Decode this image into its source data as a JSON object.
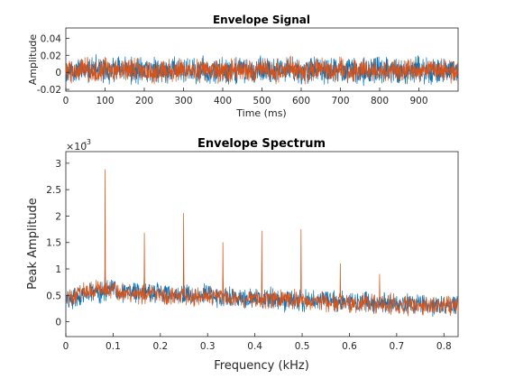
{
  "chart_data": [
    {
      "type": "line",
      "title": "Envelope Signal",
      "xlabel": "Time (ms)",
      "ylabel": "Amplitude",
      "xlim": [
        0,
        1000
      ],
      "ylim": [
        -0.022,
        0.052
      ],
      "xticks": [
        0,
        100,
        200,
        300,
        400,
        500,
        600,
        700,
        800,
        900
      ],
      "xtick_labels": [
        "0",
        "100",
        "200",
        "300",
        "400",
        "500",
        "600",
        "700",
        "800",
        "900"
      ],
      "yticks": [
        -0.02,
        0,
        0.02,
        0.04
      ],
      "ytick_labels": [
        "-0.02",
        "0",
        "0.02",
        "0.04"
      ],
      "grid": false,
      "series": [
        {
          "color": "#0072BD",
          "noise": {
            "mean": 0.0,
            "amplitude": 0.018,
            "min": -0.02,
            "max": 0.046
          },
          "x": [
            0,
            25,
            50,
            75,
            100,
            125,
            150,
            175,
            200,
            225,
            250,
            275,
            300,
            325,
            350,
            375,
            400,
            425,
            450,
            475,
            500,
            525,
            550,
            575,
            600,
            625,
            650,
            675,
            700,
            725,
            750,
            775,
            800,
            825,
            850,
            875,
            900,
            925,
            950,
            975,
            1000
          ],
          "values": [
            0.002,
            0.003,
            0.001,
            0.004,
            0.0,
            0.002,
            0.005,
            -0.001,
            0.003,
            0.002,
            0.001,
            0.004,
            0.002,
            0.0,
            0.003,
            0.001,
            0.002,
            0.004,
            0.003,
            0.001,
            0.002,
            0.0,
            0.003,
            0.002,
            0.001,
            0.004,
            0.002,
            0.003,
            0.0,
            0.002,
            0.001,
            0.003,
            0.002,
            0.004,
            0.001,
            0.002,
            0.003,
            0.0,
            0.002,
            0.001,
            0.002
          ]
        },
        {
          "color": "#D95319",
          "noise": {
            "mean": 0.0,
            "amplitude": 0.016,
            "min": -0.02,
            "max": 0.046
          },
          "x": [
            0,
            25,
            50,
            75,
            100,
            125,
            150,
            175,
            200,
            225,
            250,
            275,
            300,
            325,
            350,
            375,
            400,
            425,
            450,
            475,
            500,
            525,
            550,
            575,
            600,
            625,
            650,
            675,
            700,
            725,
            750,
            775,
            800,
            825,
            850,
            875,
            900,
            925,
            950,
            975,
            1000
          ],
          "values": [
            0.001,
            0.002,
            0.004,
            0.0,
            0.003,
            0.002,
            0.001,
            0.005,
            0.002,
            0.0,
            0.003,
            0.002,
            0.004,
            0.001,
            0.002,
            0.003,
            0.0,
            0.002,
            0.004,
            0.001,
            0.003,
            0.002,
            0.001,
            0.004,
            0.002,
            0.0,
            0.003,
            0.002,
            0.004,
            0.001,
            0.002,
            0.003,
            0.001,
            0.002,
            0.0,
            0.003,
            0.002,
            0.004,
            0.001,
            0.002,
            0.001
          ]
        }
      ]
    },
    {
      "type": "line",
      "title": "Envelope Spectrum",
      "xlabel": "Frequency (kHz)",
      "ylabel": "Peak Amplitude",
      "exponent_label": "×10",
      "exponent_value": "-3",
      "xlim": [
        0,
        0.83
      ],
      "ylim": [
        -0.00028,
        0.00322
      ],
      "xticks": [
        0,
        0.1,
        0.2,
        0.3,
        0.4,
        0.5,
        0.6,
        0.7,
        0.8
      ],
      "xtick_labels": [
        "0",
        "0.1",
        "0.2",
        "0.3",
        "0.4",
        "0.5",
        "0.6",
        "0.7",
        "0.8"
      ],
      "yticks": [
        0,
        0.0005,
        0.001,
        0.0015,
        0.002,
        0.0025,
        0.003
      ],
      "ytick_labels": [
        "0",
        "0.5",
        "1",
        "1.5",
        "2",
        "2.5",
        "3"
      ],
      "grid": false,
      "series": [
        {
          "color": "#0072BD",
          "noise": {
            "amplitude": 0.00024,
            "min": 2e-05,
            "max": 0.0011
          },
          "x": [
            0.0,
            0.05,
            0.1,
            0.15,
            0.2,
            0.25,
            0.3,
            0.35,
            0.4,
            0.45,
            0.5,
            0.55,
            0.6,
            0.65,
            0.7,
            0.75,
            0.8,
            0.83
          ],
          "values": [
            0.0004,
            0.00055,
            0.0006,
            0.00055,
            0.00055,
            0.0005,
            0.0005,
            0.00048,
            0.00045,
            0.00042,
            0.0004,
            0.0004,
            0.00038,
            0.00036,
            0.00034,
            0.00032,
            0.0003,
            0.0003
          ],
          "peaks": [
            {
              "x": 0.083,
              "value": 0.00115
            },
            {
              "x": 0.166,
              "value": 0.0009
            },
            {
              "x": 0.249,
              "value": 0.0011
            },
            {
              "x": 0.332,
              "value": 0.00085
            }
          ]
        },
        {
          "color": "#D95319",
          "noise": {
            "amplitude": 0.00022,
            "min": 2e-05,
            "max": 0.0011
          },
          "x": [
            0.0,
            0.05,
            0.1,
            0.15,
            0.2,
            0.25,
            0.3,
            0.35,
            0.4,
            0.45,
            0.5,
            0.55,
            0.6,
            0.65,
            0.7,
            0.75,
            0.8,
            0.83
          ],
          "values": [
            0.00045,
            0.0006,
            0.0006,
            0.00052,
            0.0005,
            0.0005,
            0.00048,
            0.00046,
            0.00044,
            0.00042,
            0.0004,
            0.00038,
            0.00037,
            0.00035,
            0.00033,
            0.00031,
            0.0003,
            0.0003
          ],
          "peaks": [
            {
              "x": 0.083,
              "value": 0.00288
            },
            {
              "x": 0.166,
              "value": 0.00168
            },
            {
              "x": 0.249,
              "value": 0.00205
            },
            {
              "x": 0.332,
              "value": 0.0015
            },
            {
              "x": 0.415,
              "value": 0.00172
            },
            {
              "x": 0.498,
              "value": 0.00175
            },
            {
              "x": 0.581,
              "value": 0.0011
            },
            {
              "x": 0.664,
              "value": 0.0009
            }
          ]
        }
      ]
    }
  ]
}
